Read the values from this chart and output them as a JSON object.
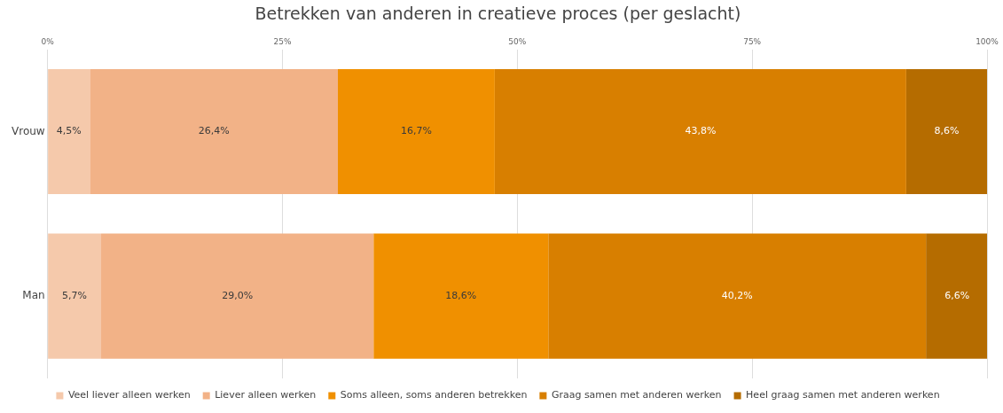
{
  "chart_data": {
    "type": "bar",
    "orientation": "horizontal",
    "stacked": true,
    "title": "Betrekken van anderen in creatieve proces (per geslacht)",
    "categories": [
      "Vrouw",
      "Man"
    ],
    "series": [
      {
        "name": "Veel liever alleen werken",
        "color": "#f5c9ab",
        "values": [
          4.5,
          5.7
        ],
        "value_labels": [
          "4,5%",
          "5,7%"
        ]
      },
      {
        "name": "Liever alleen werken",
        "color": "#f2b287",
        "values": [
          26.4,
          29.0
        ],
        "value_labels": [
          "26,4%",
          "29,0%"
        ]
      },
      {
        "name": "Soms alleen, soms anderen betrekken",
        "color": "#f09000",
        "values": [
          16.7,
          18.6
        ],
        "value_labels": [
          "16,7%",
          "18,6%"
        ]
      },
      {
        "name": "Graag samen met anderen werken",
        "color": "#d87f00",
        "values": [
          43.8,
          40.2
        ],
        "value_labels": [
          "43,8%",
          "40,2%"
        ]
      },
      {
        "name": "Heel graag samen met anderen werken",
        "color": "#b56c00",
        "values": [
          8.6,
          6.6
        ],
        "value_labels": [
          "8,6%",
          "6,6%"
        ]
      }
    ],
    "xlim": [
      0,
      100
    ],
    "xticks": [
      {
        "value": 0,
        "label": "0%"
      },
      {
        "value": 25,
        "label": "25%"
      },
      {
        "value": 50,
        "label": "50%"
      },
      {
        "value": 75,
        "label": "75%"
      },
      {
        "value": 100,
        "label": "100%"
      }
    ],
    "grid": "x",
    "legend": "bottom"
  }
}
